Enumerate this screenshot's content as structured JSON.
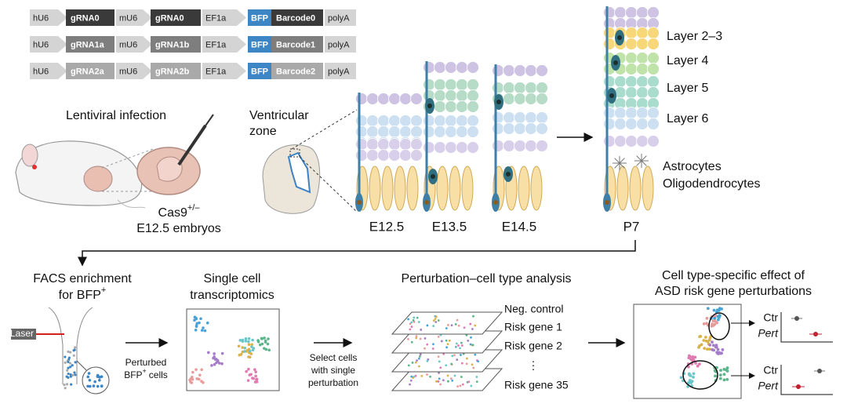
{
  "constructs": [
    [
      "hU6",
      "gRNA0",
      "mU6",
      "gRNA0",
      "EF1a",
      "BFP",
      "Barcode0",
      "polyA"
    ],
    [
      "hU6",
      "gRNA1a",
      "mU6",
      "gRNA1b",
      "EF1a",
      "BFP",
      "Barcode1",
      "polyA"
    ],
    [
      "hU6",
      "gRNA2a",
      "mU6",
      "gRNA2b",
      "EF1a",
      "BFP",
      "Barcode2",
      "polyA"
    ]
  ],
  "infection": {
    "title": "Lentiviral infection",
    "genotype": "Cas9",
    "genotype_sup": "+/–",
    "embryos": "E12.5 embryos"
  },
  "ventricular_zone": [
    "Ventricular",
    "zone"
  ],
  "stages": [
    "E12.5",
    "E13.5",
    "E14.5",
    "P7"
  ],
  "layers": [
    "Layer 2–3",
    "Layer 4",
    "Layer 5",
    "Layer 6"
  ],
  "glia": [
    "Astrocytes",
    "Oligodendrocytes"
  ],
  "facs": {
    "title": "FACS enrichment",
    "title2": "for BFP",
    "title_sup": "+",
    "laser": "Laser",
    "output": "Perturbed",
    "output2": "BFP",
    "output_sup": "+",
    "output_tail": "cells"
  },
  "transcriptomics": [
    "Single cell",
    "transcriptomics"
  ],
  "selection": [
    "Select cells",
    "with single",
    "perturbation"
  ],
  "analysis": {
    "title": "Perturbation–cell type analysis",
    "layers": [
      "Neg. control",
      "Risk gene 1",
      "Risk gene 2",
      "⋮",
      "Risk gene 35"
    ]
  },
  "effect": {
    "title": [
      "Cell type-specific effect of",
      "ASD risk gene perturbations"
    ],
    "plots": [
      {
        "ctr": "Ctr",
        "pert": "Pert"
      },
      {
        "ctr": "Ctr",
        "pert": "Pert"
      }
    ]
  }
}
